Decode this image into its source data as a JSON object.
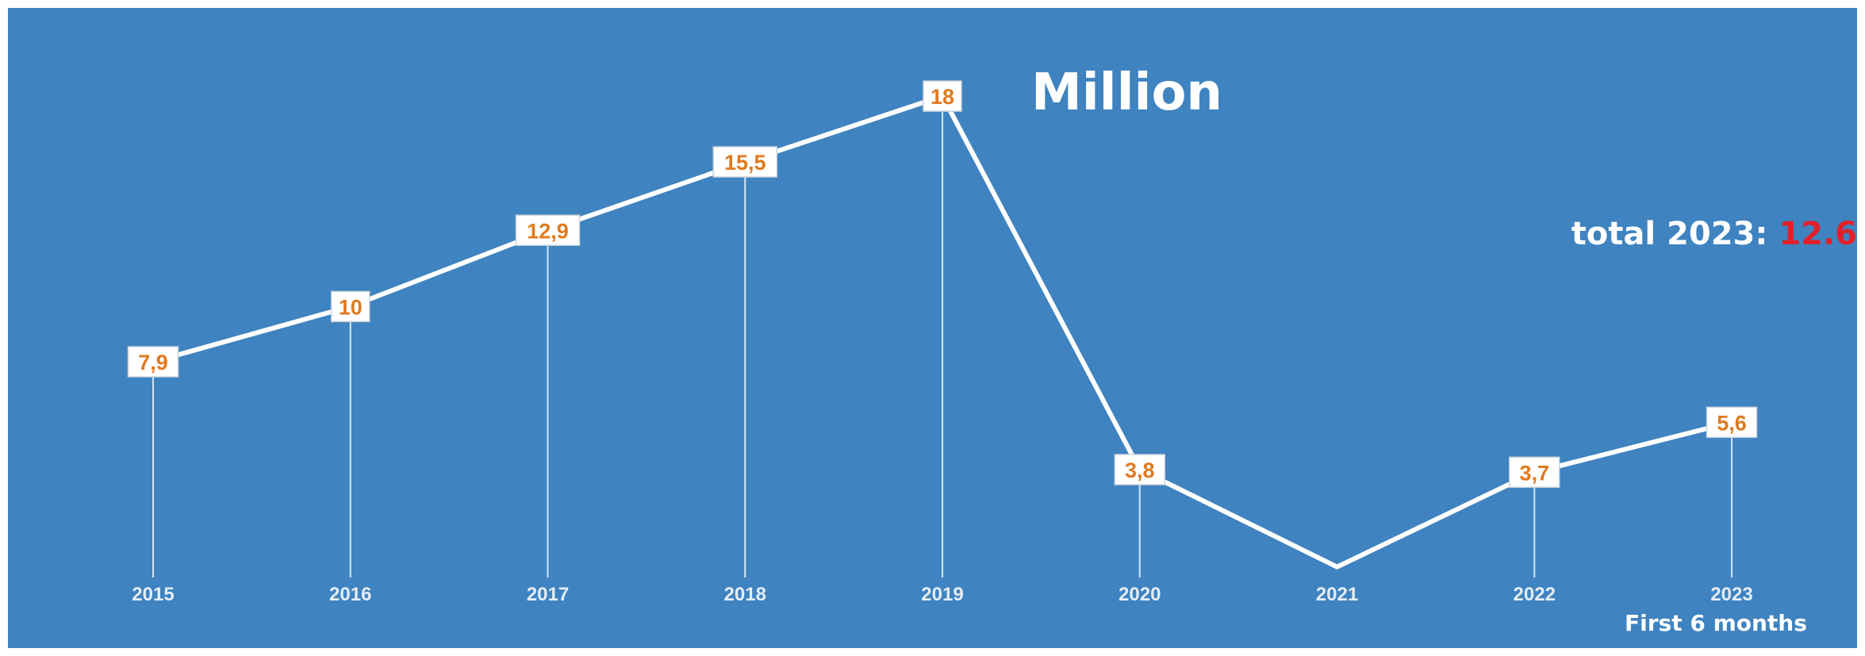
{
  "unit_label": "Million",
  "total_note": {
    "label": "total 2023: ",
    "value": "12.6"
  },
  "period_note": "First 6 months",
  "colors": {
    "background": "#3f83c0",
    "line": "#ffffff",
    "label_text": "#e07a1f",
    "highlight": "#e3202a"
  },
  "chart_data": {
    "type": "line",
    "title": "Million",
    "categories": [
      "2015",
      "2016",
      "2017",
      "2018",
      "2019",
      "2020",
      "2021",
      "2022",
      "2023"
    ],
    "series": [
      {
        "values": [
          7.9,
          10,
          12.9,
          15.5,
          18,
          3.8,
          0.1,
          3.7,
          5.6
        ],
        "data_labels": [
          "7,9",
          "10",
          "12,9",
          "15,5",
          "18",
          "3,8",
          "",
          "3,7",
          "5,6"
        ]
      }
    ],
    "ylim": [
      0,
      19
    ],
    "grid": false,
    "legend": "none",
    "drop_lines": true
  }
}
